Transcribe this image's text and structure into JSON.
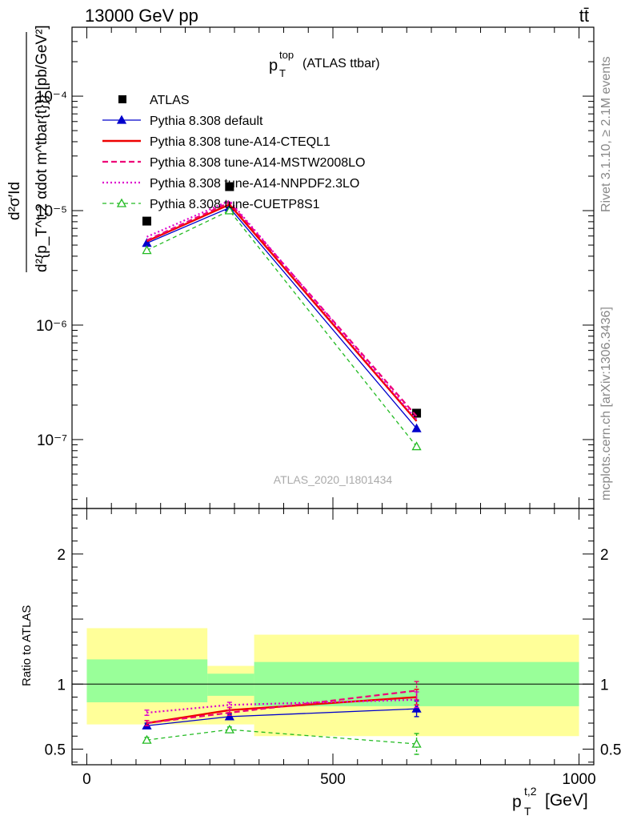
{
  "header": {
    "left": "13000 GeV pp",
    "right": "tt̄"
  },
  "side_labels": {
    "rivet": "Rivet 3.1.10, ≥ 2.1M events",
    "mcplots": "mcplots.cern.ch [arXiv:1306.3436]"
  },
  "colors": {
    "atlas": "#000000",
    "default": "#0000cc",
    "cteql1": "#ee0000",
    "mstw": "#ee0077",
    "nnpdf": "#dd00cc",
    "cuetp": "#22bb22",
    "band_inner": "#99ff99",
    "band_outer": "#ffff99"
  },
  "chart_data": [
    {
      "type": "line",
      "panel": "main",
      "title": "p_T^top (ATLAS ttbar)",
      "title_main": "p",
      "title_sub": "T",
      "title_sup": "top",
      "title_rest": "(ATLAS ttbar)",
      "ylabel": "d²σ′Id{p_T^t,2 αdot m^tbar{t}}} [pb/GeV²]",
      "ylabel_numerator": "d²σ′Id",
      "ylabel_denominator": "d²{p_T^t,2 αdot m^tbar{t}}} [pb/GeV²]",
      "xlim": [
        -30,
        1030
      ],
      "ylim": [
        2.5e-08,
        0.0004
      ],
      "yscale": "log",
      "yticks": [
        {
          "value": 0.0001,
          "label": "10⁻⁴"
        },
        {
          "value": 1e-05,
          "label": "10⁻⁵"
        },
        {
          "value": 1e-06,
          "label": "10⁻⁶"
        },
        {
          "value": 1e-07,
          "label": "10⁻⁷"
        }
      ],
      "watermark": "ATLAS_2020_I1801434",
      "legend_position": "top-left",
      "series": [
        {
          "name": "ATLAS",
          "key": "atlas",
          "style": "data",
          "x": [
            122,
            290,
            670
          ],
          "y": [
            8.1e-06,
            1.62e-05,
            1.7e-07
          ]
        },
        {
          "name": "Pythia 8.308 default",
          "key": "default",
          "style": "solid-thin",
          "marker": "triangle-filled",
          "x": [
            122,
            290,
            670
          ],
          "y": [
            5.2e-06,
            1.06e-05,
            1.25e-07
          ]
        },
        {
          "name": "Pythia 8.308 tune-A14-CTEQL1",
          "key": "cteql1",
          "style": "solid-thick",
          "x": [
            122,
            290,
            670
          ],
          "y": [
            5.4e-06,
            1.13e-05,
            1.45e-07
          ]
        },
        {
          "name": "Pythia 8.308 tune-A14-MSTW2008LO",
          "key": "mstw",
          "style": "dashed",
          "x": [
            122,
            290,
            670
          ],
          "y": [
            5.5e-06,
            1.18e-05,
            1.6e-07
          ]
        },
        {
          "name": "Pythia 8.308 tune-A14-NNPDF2.3LO",
          "key": "nnpdf",
          "style": "dotted",
          "x": [
            122,
            290,
            670
          ],
          "y": [
            5.9e-06,
            1.22e-05,
            1.5e-07
          ]
        },
        {
          "name": "Pythia 8.308 tune-CUETP8S1",
          "key": "cuetp",
          "style": "dashed-thin",
          "marker": "triangle-open",
          "x": [
            122,
            290,
            670
          ],
          "y": [
            4.5e-06,
            1e-05,
            8.7e-08
          ]
        }
      ]
    },
    {
      "type": "line",
      "panel": "ratio",
      "ylabel": "Ratio to ATLAS",
      "xlabel": "p_T^t,2 [GeV]",
      "xlabel_main": "p",
      "xlabel_sub": "T",
      "xlabel_sup": "t,2",
      "xlabel_unit": "[GeV]",
      "xlim": [
        -30,
        1030
      ],
      "ylim": [
        0.38,
        2.35
      ],
      "xticks": [
        {
          "value": 0,
          "label": "0"
        },
        {
          "value": 500,
          "label": "500"
        },
        {
          "value": 1000,
          "label": "1000"
        }
      ],
      "yticks": [
        {
          "value": 0.5,
          "label": "0.5"
        },
        {
          "value": 1,
          "label": "1"
        },
        {
          "value": 2,
          "label": "2"
        }
      ],
      "bands": [
        {
          "x0": 0,
          "x1": 245,
          "inner": [
            0.86,
            1.19
          ],
          "outer": [
            0.69,
            1.43
          ]
        },
        {
          "x0": 245,
          "x1": 340,
          "inner": [
            0.91,
            1.08
          ],
          "outer": [
            0.69,
            1.14
          ]
        },
        {
          "x0": 340,
          "x1": 1000,
          "inner": [
            0.83,
            1.17
          ],
          "outer": [
            0.6,
            1.38
          ]
        }
      ],
      "series": [
        {
          "key": "default",
          "x": [
            122,
            290,
            670
          ],
          "y": [
            0.68,
            0.75,
            0.81
          ],
          "err": [
            0.02,
            0.02,
            0.06
          ]
        },
        {
          "key": "cteql1",
          "x": [
            122,
            290,
            670
          ],
          "y": [
            0.7,
            0.8,
            0.9
          ],
          "err": [
            0.02,
            0.02,
            0.06
          ]
        },
        {
          "key": "mstw",
          "x": [
            122,
            290,
            670
          ],
          "y": [
            0.7,
            0.78,
            0.95
          ],
          "err": [
            0.02,
            0.02,
            0.07
          ]
        },
        {
          "key": "nnpdf",
          "x": [
            122,
            290,
            670
          ],
          "y": [
            0.78,
            0.84,
            0.88
          ],
          "err": [
            0.02,
            0.02,
            0.06
          ]
        },
        {
          "key": "cuetp",
          "x": [
            122,
            290,
            670
          ],
          "y": [
            0.57,
            0.65,
            0.54
          ],
          "err": [
            0.02,
            0.02,
            0.08
          ]
        }
      ]
    }
  ]
}
